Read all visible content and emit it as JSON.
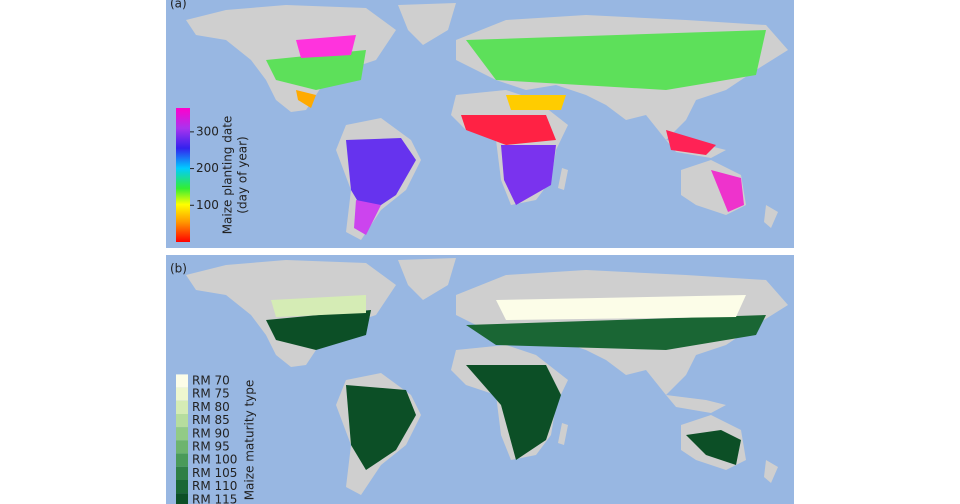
{
  "panels": [
    {
      "label": "(a)",
      "colorbar": {
        "title": "Maize planting date",
        "subtitle": "(day of year)",
        "lim": [
          0,
          365
        ],
        "ticks": [
          100,
          200,
          300
        ]
      }
    },
    {
      "label": "(b)",
      "legend": {
        "title": "Maize maturity type",
        "entries": [
          {
            "label": "RM 70",
            "color": "#fcfde8"
          },
          {
            "label": "RM 75",
            "color": "#eef7cf"
          },
          {
            "label": "RM 80",
            "color": "#d5ecb5"
          },
          {
            "label": "RM 85",
            "color": "#b6dd9e"
          },
          {
            "label": "RM 90",
            "color": "#92cb86"
          },
          {
            "label": "RM 95",
            "color": "#6db46f"
          },
          {
            "label": "RM 100",
            "color": "#4a9a5a"
          },
          {
            "label": "RM 105",
            "color": "#2f7f46"
          },
          {
            "label": "RM 110",
            "color": "#1a6634"
          },
          {
            "label": "RM 115",
            "color": "#0c4f26"
          }
        ]
      }
    }
  ]
}
